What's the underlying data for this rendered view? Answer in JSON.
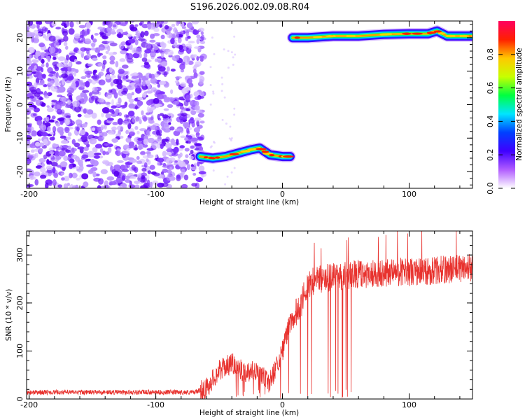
{
  "title": "S196.2026.002.09.08.R04",
  "chart_data": [
    {
      "type": "heatmap",
      "name": "spectrogram",
      "xlabel": "Height of straight line (km)",
      "ylabel": "Frequency (Hz)",
      "xlim": [
        -202,
        150
      ],
      "ylim": [
        -25,
        25
      ],
      "xticks": [
        -200,
        -100,
        0,
        100
      ],
      "xtick_labels": [
        "-200",
        "-100",
        "0",
        "100"
      ],
      "yticks": [
        -20,
        -10,
        0,
        10,
        20
      ],
      "ytick_labels": [
        "-20",
        "-10",
        "0",
        "10",
        "20"
      ],
      "noise_region_x": [
        -202,
        -62
      ],
      "gap_region_x": [
        -62,
        8
      ],
      "signal_segments": [
        {
          "x": [
            -65,
            -55,
            -45,
            -35,
            -25,
            -18,
            -10,
            0,
            6
          ],
          "y": [
            -15.5,
            -16,
            -15.5,
            -14.5,
            -13.5,
            -13,
            -15,
            -15.5,
            -15.5
          ]
        },
        {
          "x": [
            8,
            20,
            40,
            60,
            80,
            100,
            115,
            122,
            130,
            150
          ],
          "y": [
            20,
            20,
            20.5,
            20.5,
            21,
            21.2,
            21.2,
            22,
            20.5,
            20.5
          ]
        }
      ]
    },
    {
      "type": "line",
      "name": "snr",
      "xlabel": "Height of straight line (km)",
      "ylabel": "SNR (10 * v/v)",
      "xlim": [
        -202,
        150
      ],
      "ylim": [
        0,
        350
      ],
      "xticks": [
        -200,
        -100,
        0,
        100
      ],
      "xtick_labels": [
        "-200",
        "-100",
        "0",
        "100"
      ],
      "yticks": [
        0,
        100,
        200,
        300
      ],
      "ytick_labels": [
        "0",
        "100",
        "200",
        "300"
      ],
      "color": "#e8322e",
      "trend": {
        "x": [
          -202,
          -70,
          -60,
          -50,
          -40,
          -30,
          -20,
          -15,
          -10,
          0,
          5,
          10,
          15,
          20,
          30,
          50,
          70,
          90,
          110,
          130,
          150
        ],
        "y": [
          14,
          14,
          22,
          60,
          75,
          55,
          62,
          45,
          35,
          100,
          150,
          175,
          200,
          240,
          250,
          258,
          262,
          265,
          265,
          270,
          275
        ]
      }
    }
  ],
  "colorbar": {
    "label": "Normalized spectral amplitude",
    "ticks": [
      0.0,
      0.2,
      0.4,
      0.6,
      0.8
    ],
    "tick_labels": [
      "0.0",
      "0.2",
      "0.4",
      "0.6",
      "0.8"
    ],
    "colors": [
      "#ffffff",
      "#b15dff",
      "#3f00ff",
      "#0040ff",
      "#00e5ff",
      "#00ff40",
      "#c8ff00",
      "#ffc800",
      "#ff2000",
      "#ff0060"
    ]
  }
}
